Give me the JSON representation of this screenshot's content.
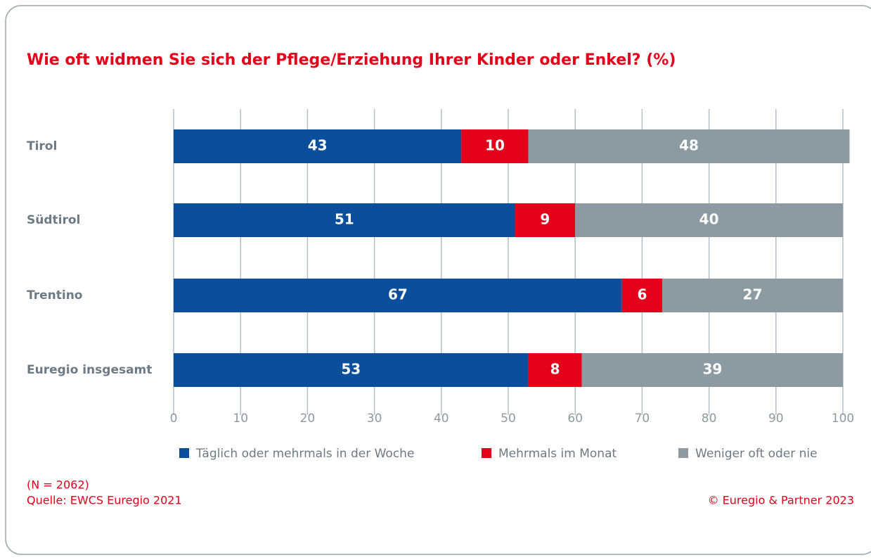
{
  "chart_data": {
    "type": "bar",
    "orientation": "horizontal",
    "stacked": true,
    "title": "Wie oft widmen Sie sich der Pflege/Erziehung Ihrer Kinder oder Enkel? (%)",
    "categories": [
      "Tirol",
      "Südtirol",
      "Trentino",
      "Euregio insgesamt"
    ],
    "series": [
      {
        "name": "Täglich oder mehrmals in der Woche",
        "color": "#0b4f9c",
        "values": [
          43,
          51,
          67,
          53
        ]
      },
      {
        "name": "Mehrmals im Monat",
        "color": "#e2001a",
        "values": [
          10,
          9,
          6,
          8
        ]
      },
      {
        "name": "Weniger oft oder nie",
        "color": "#8c9aa2",
        "values": [
          48,
          40,
          27,
          39
        ]
      }
    ],
    "xlim": [
      0,
      100
    ],
    "xticks": [
      0,
      10,
      20,
      30,
      40,
      50,
      60,
      70,
      80,
      90,
      100
    ],
    "grid": true,
    "legend": "bottom",
    "notes": [
      "(N = 2062)",
      "Quelle: EWCS Euregio 2021"
    ],
    "copyright": "© Euregio & Partner 2023"
  }
}
